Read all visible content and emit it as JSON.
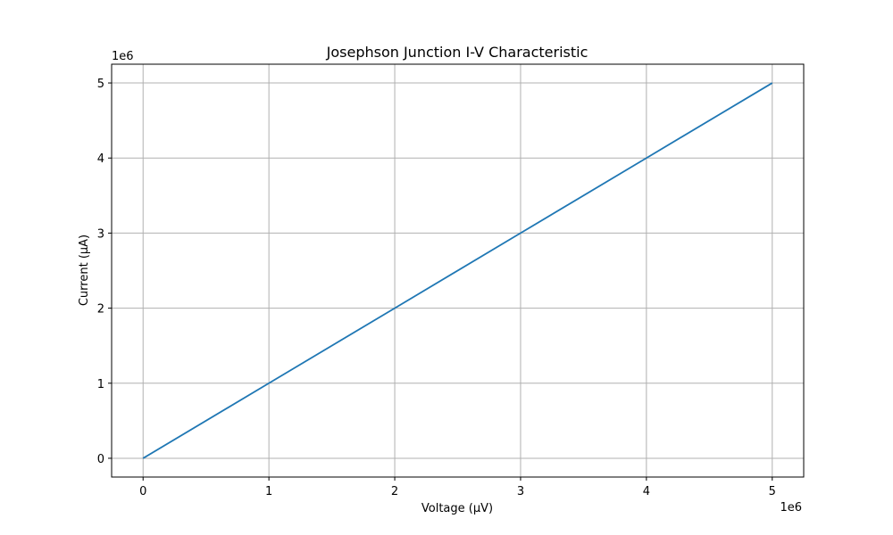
{
  "chart_data": {
    "type": "line",
    "title": "Josephson Junction I-V Characteristic",
    "xlabel": "Voltage (µV)",
    "ylabel": "Current (µA)",
    "x_offset_label": "1e6",
    "y_offset_label": "1e6",
    "x_scale_factor": 1000000,
    "y_scale_factor": 1000000,
    "xlim": [
      -250000,
      5250000
    ],
    "ylim": [
      -250000,
      5250000
    ],
    "x_ticks": [
      0,
      1000000,
      2000000,
      3000000,
      4000000,
      5000000
    ],
    "x_tick_labels": [
      "0",
      "1",
      "2",
      "3",
      "4",
      "5"
    ],
    "y_ticks": [
      0,
      1000000,
      2000000,
      3000000,
      4000000,
      5000000
    ],
    "y_tick_labels": [
      "0",
      "1",
      "2",
      "3",
      "4",
      "5"
    ],
    "grid": true,
    "series": [
      {
        "color": "#1f77b4",
        "x": [
          0,
          1000000,
          2000000,
          3000000,
          4000000,
          5000000
        ],
        "y": [
          0,
          1000000,
          2000000,
          3000000,
          4000000,
          5000000
        ]
      }
    ]
  }
}
